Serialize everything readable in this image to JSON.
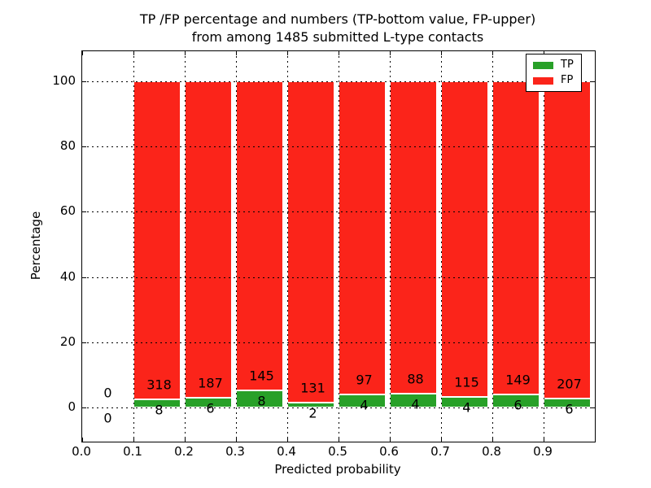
{
  "chart_data": {
    "type": "bar",
    "stacked": true,
    "orientation": "vertical",
    "normalized_to_percent": true,
    "title": "TP /FP percentage and numbers (TP-bottom value, FP-upper)",
    "subtitle": "from among 1485 submitted L-type contacts",
    "xlabel": "Predicted probability",
    "ylabel": "Percentage",
    "xlim": [
      0.0,
      1.0
    ],
    "ylim": [
      -10,
      110
    ],
    "x_ticks": [
      "0.0",
      "0.1",
      "0.2",
      "0.3",
      "0.4",
      "0.5",
      "0.6",
      "0.7",
      "0.8",
      "0.9"
    ],
    "y_ticks": [
      0,
      20,
      40,
      60,
      80,
      100
    ],
    "grid": "dotted",
    "grid_above_bars": true,
    "total_submitted": 1485,
    "categories": [
      "0.0-0.1",
      "0.1-0.2",
      "0.2-0.3",
      "0.3-0.4",
      "0.4-0.5",
      "0.5-0.6",
      "0.6-0.7",
      "0.7-0.8",
      "0.8-0.9",
      "0.9-1.0"
    ],
    "series": [
      {
        "name": "TP",
        "color": "#28a028",
        "values": [
          0,
          8,
          6,
          8,
          2,
          4,
          4,
          4,
          6,
          6
        ]
      },
      {
        "name": "FP",
        "color": "#fb241a",
        "values": [
          0,
          318,
          187,
          145,
          131,
          97,
          88,
          115,
          149,
          207
        ]
      }
    ],
    "bar_note": "bar heights are TP/(TP+FP) and FP/(TP+FP) percentages; labels show raw counts, TP below bar, FP above green segment",
    "legend": {
      "position": "upper right",
      "entries": [
        "TP",
        "FP"
      ]
    }
  },
  "colors": {
    "tp_green": "#28a028",
    "fp_red": "#fb241a",
    "axis_black": "#000000",
    "background": "#ffffff"
  }
}
